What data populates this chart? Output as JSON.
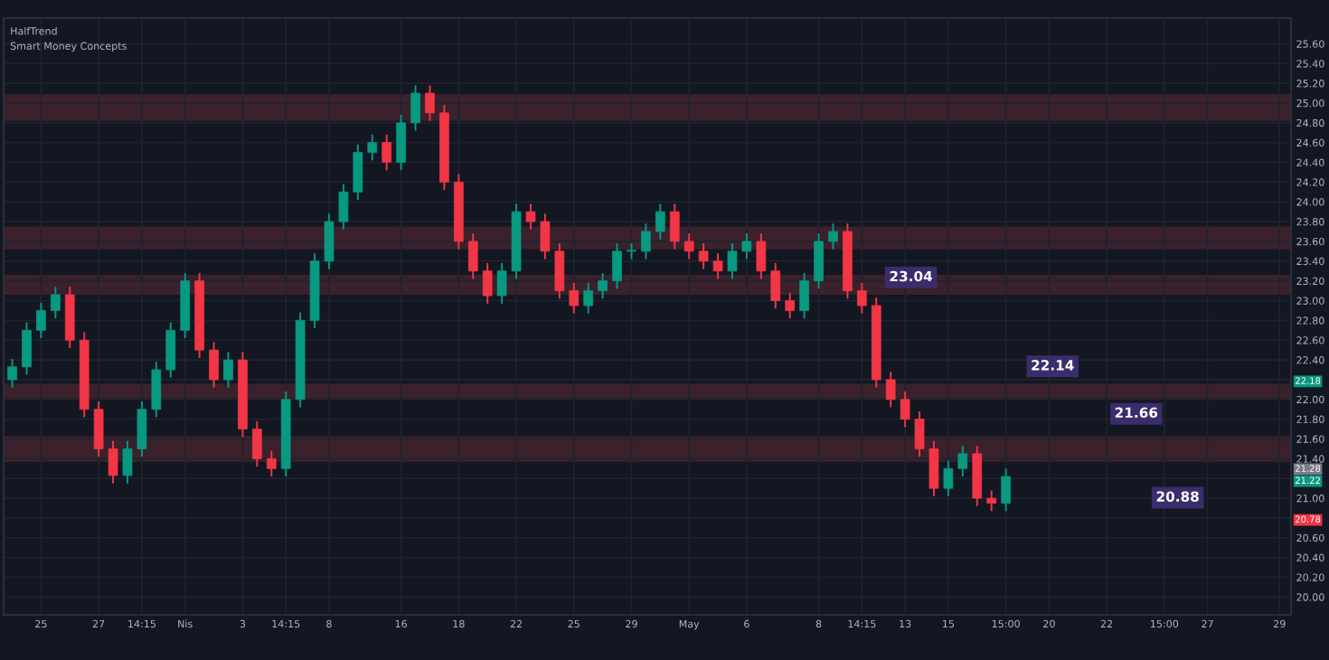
{
  "chart_data": {
    "type": "candlestick",
    "categories": [
      null,
      null,
      "25",
      null,
      null,
      null,
      "27",
      null,
      null,
      "14:15",
      null,
      null,
      "Nis",
      null,
      null,
      null,
      "3",
      null,
      null,
      "14:15",
      null,
      null,
      "8",
      null,
      null,
      null,
      null,
      "16",
      null,
      null,
      null,
      "18",
      null,
      null,
      null,
      "22",
      null,
      null,
      null,
      "25",
      null,
      null,
      null,
      "29",
      null,
      null,
      null,
      "May",
      null,
      null,
      null,
      "6",
      null,
      null,
      null,
      null,
      "8",
      null,
      null,
      "14:15",
      null,
      null,
      "13",
      null,
      null,
      "15",
      null,
      null,
      null,
      "15:00",
      null,
      null,
      "20",
      null,
      null,
      null,
      "22",
      null,
      null,
      null,
      "15:00",
      null,
      null,
      "27",
      null,
      null,
      null,
      null,
      "29"
    ],
    "ohlc": [
      [
        22.2,
        22.41,
        22.12,
        22.33
      ],
      [
        22.33,
        22.78,
        22.25,
        22.7
      ],
      [
        22.7,
        22.98,
        22.62,
        22.9
      ],
      [
        22.9,
        23.14,
        22.82,
        23.06
      ],
      [
        23.06,
        23.14,
        22.52,
        22.6
      ],
      [
        22.6,
        22.68,
        21.82,
        21.9
      ],
      [
        21.9,
        21.98,
        21.42,
        21.5
      ],
      [
        21.5,
        21.58,
        21.15,
        21.23
      ],
      [
        21.23,
        21.58,
        21.15,
        21.5
      ],
      [
        21.5,
        21.98,
        21.42,
        21.9
      ],
      [
        21.9,
        22.38,
        21.82,
        22.3
      ],
      [
        22.3,
        22.78,
        22.22,
        22.7
      ],
      [
        22.7,
        23.28,
        22.62,
        23.2
      ],
      [
        23.2,
        23.28,
        22.42,
        22.5
      ],
      [
        22.5,
        22.58,
        22.12,
        22.2
      ],
      [
        22.2,
        22.48,
        22.12,
        22.4
      ],
      [
        22.4,
        22.48,
        21.62,
        21.7
      ],
      [
        21.7,
        21.78,
        21.32,
        21.4
      ],
      [
        21.4,
        21.48,
        21.22,
        21.3
      ],
      [
        21.3,
        22.08,
        21.22,
        22.0
      ],
      [
        22.0,
        22.88,
        21.92,
        22.8
      ],
      [
        22.8,
        23.48,
        22.72,
        23.4
      ],
      [
        23.4,
        23.88,
        23.32,
        23.8
      ],
      [
        23.8,
        24.18,
        23.72,
        24.1
      ],
      [
        24.1,
        24.58,
        24.02,
        24.5
      ],
      [
        24.5,
        24.68,
        24.42,
        24.6
      ],
      [
        24.6,
        24.68,
        24.32,
        24.4
      ],
      [
        24.4,
        24.88,
        24.32,
        24.8
      ],
      [
        24.8,
        25.18,
        24.72,
        25.1
      ],
      [
        25.1,
        25.18,
        24.82,
        24.9
      ],
      [
        24.9,
        24.98,
        24.12,
        24.2
      ],
      [
        24.2,
        24.28,
        23.52,
        23.6
      ],
      [
        23.6,
        23.68,
        23.22,
        23.3
      ],
      [
        23.3,
        23.38,
        22.97,
        23.05
      ],
      [
        23.05,
        23.38,
        22.97,
        23.3
      ],
      [
        23.3,
        23.98,
        23.22,
        23.9
      ],
      [
        23.9,
        23.98,
        23.72,
        23.8
      ],
      [
        23.8,
        23.88,
        23.42,
        23.5
      ],
      [
        23.5,
        23.58,
        23.02,
        23.1
      ],
      [
        23.1,
        23.18,
        22.87,
        22.95
      ],
      [
        22.95,
        23.18,
        22.87,
        23.1
      ],
      [
        23.1,
        23.28,
        23.02,
        23.2
      ],
      [
        23.2,
        23.58,
        23.12,
        23.5
      ],
      [
        23.5,
        23.58,
        23.42,
        23.5
      ],
      [
        23.5,
        23.78,
        23.42,
        23.7
      ],
      [
        23.7,
        23.98,
        23.62,
        23.9
      ],
      [
        23.9,
        23.98,
        23.52,
        23.6
      ],
      [
        23.6,
        23.68,
        23.42,
        23.5
      ],
      [
        23.5,
        23.58,
        23.32,
        23.4
      ],
      [
        23.4,
        23.48,
        23.22,
        23.3
      ],
      [
        23.3,
        23.58,
        23.22,
        23.5
      ],
      [
        23.5,
        23.68,
        23.42,
        23.6
      ],
      [
        23.6,
        23.68,
        23.22,
        23.3
      ],
      [
        23.3,
        23.38,
        22.92,
        23.0
      ],
      [
        23.0,
        23.08,
        22.82,
        22.9
      ],
      [
        22.9,
        23.28,
        22.82,
        23.2
      ],
      [
        23.2,
        23.68,
        23.12,
        23.6
      ],
      [
        23.6,
        23.78,
        23.52,
        23.7
      ],
      [
        23.7,
        23.78,
        23.02,
        23.1
      ],
      [
        23.1,
        23.18,
        22.87,
        22.95
      ],
      [
        22.95,
        23.03,
        22.12,
        22.2
      ],
      [
        22.2,
        22.28,
        21.92,
        22.0
      ],
      [
        22.0,
        22.08,
        21.72,
        21.8
      ],
      [
        21.8,
        21.88,
        21.42,
        21.5
      ],
      [
        21.5,
        21.58,
        21.02,
        21.1
      ],
      [
        21.1,
        21.38,
        21.02,
        21.3
      ],
      [
        21.3,
        21.53,
        21.22,
        21.45
      ],
      [
        21.45,
        21.53,
        20.92,
        21.0
      ],
      [
        21.0,
        21.08,
        20.87,
        20.95
      ],
      [
        20.95,
        21.3,
        20.87,
        21.22
      ],
      null,
      null,
      null,
      null,
      null,
      null,
      null,
      null,
      null,
      null,
      null,
      null,
      null,
      null,
      null,
      null,
      null,
      null,
      null
    ],
    "ylim": [
      19.82,
      25.86
    ],
    "yticks": [
      {
        "value": 20.0,
        "label": "20.00"
      },
      {
        "value": 20.2,
        "label": "20.20"
      },
      {
        "value": 20.4,
        "label": "20.40"
      },
      {
        "value": 20.6,
        "label": "20.60"
      },
      {
        "value": 20.8,
        "label": null
      },
      {
        "value": 21.0,
        "label": "21.00"
      },
      {
        "value": 21.2,
        "label": null
      },
      {
        "value": 21.4,
        "label": "21.40"
      },
      {
        "value": 21.6,
        "label": "21.60"
      },
      {
        "value": 21.8,
        "label": "21.80"
      },
      {
        "value": 22.0,
        "label": "22.00"
      },
      {
        "value": 22.2,
        "label": null
      },
      {
        "value": 22.4,
        "label": "22.40"
      },
      {
        "value": 22.6,
        "label": "22.60"
      },
      {
        "value": 22.8,
        "label": "22.80"
      },
      {
        "value": 23.0,
        "label": "23.00"
      },
      {
        "value": 23.2,
        "label": "23.20"
      },
      {
        "value": 23.4,
        "label": "23.40"
      },
      {
        "value": 23.6,
        "label": "23.60"
      },
      {
        "value": 23.8,
        "label": "23.80"
      },
      {
        "value": 24.0,
        "label": "24.00"
      },
      {
        "value": 24.2,
        "label": "24.20"
      },
      {
        "value": 24.4,
        "label": "24.40"
      },
      {
        "value": 24.6,
        "label": "24.60"
      },
      {
        "value": 24.8,
        "label": "24.80"
      },
      {
        "value": 25.0,
        "label": "25.00"
      },
      {
        "value": 25.2,
        "label": "25.20"
      },
      {
        "value": 25.4,
        "label": "25.40"
      },
      {
        "value": 25.6,
        "label": "25.60"
      }
    ],
    "grid": true,
    "bands": [
      {
        "axis": "y",
        "from": 24.82,
        "to": 25.09,
        "color": "#6b2f38"
      },
      {
        "axis": "y",
        "from": 23.52,
        "to": 23.75,
        "color": "#6b2f38"
      },
      {
        "axis": "y",
        "from": 23.06,
        "to": 23.26,
        "color": "#6b2f38"
      },
      {
        "axis": "y",
        "from": 22.01,
        "to": 22.16,
        "color": "#6b2f38"
      },
      {
        "axis": "y",
        "from": 21.37,
        "to": 21.63,
        "color": "#6b2f38"
      }
    ],
    "annotations": [
      "HalfTrend",
      "Smart Money Concepts",
      {
        "text": "23.04",
        "y": 23.04
      },
      {
        "text": "22.14",
        "y": 22.14
      },
      {
        "text": "21.66",
        "y": 21.66
      },
      "20.88",
      "22.18",
      "21.28",
      "21.22",
      "20.78"
    ]
  }
}
